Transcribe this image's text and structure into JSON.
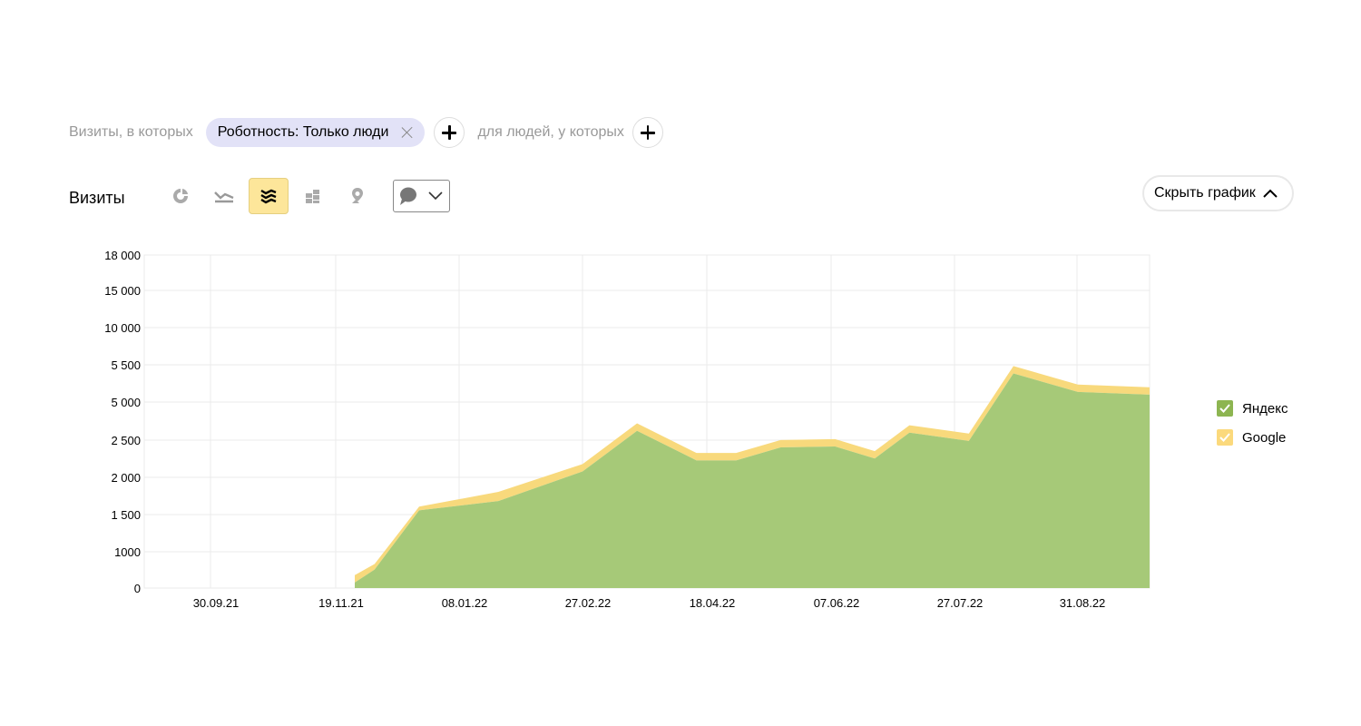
{
  "filter": {
    "visits_text": "Визиты, в которых",
    "chip_label": "Роботность: Только люди",
    "people_text": "для людей, у которых"
  },
  "toolbar": {
    "title": "Визиты",
    "hide_chart_label": "Скрыть график",
    "active_view": "stacked-area"
  },
  "colors": {
    "yandex": "#a6c978",
    "google": "#f8d97c",
    "active_view_bg": "#fde69a",
    "chip_bg": "#e2e2f7",
    "legend_yandex": "#8db551",
    "legend_google": "#fbd97c"
  },
  "chart_data": {
    "type": "area",
    "stacked": true,
    "title": "",
    "xlabel": "",
    "ylabel": "",
    "ylim": [
      0,
      18000
    ],
    "y_ticks": [
      "0",
      "1000",
      "1 500",
      "2 000",
      "2 500",
      "5 000",
      "5 500",
      "10 000",
      "15 000",
      "18 000"
    ],
    "x_tick_labels": [
      "30.09.21",
      "19.11.21",
      "08.01.22",
      "27.02.22",
      "18.04.22",
      "07.06.22",
      "27.07.22",
      "31.08.22"
    ],
    "grid": true,
    "legend": "right",
    "series": [
      {
        "name": "Яндекс",
        "points": [
          [
            0,
            300
          ],
          [
            0.2,
            1000
          ],
          [
            0.65,
            4200
          ],
          [
            1.45,
            4700
          ],
          [
            2.3,
            6300
          ],
          [
            2.85,
            8500
          ],
          [
            3.45,
            6900
          ],
          [
            3.7,
            6900
          ],
          [
            3.85,
            6900
          ],
          [
            4.3,
            7600
          ],
          [
            4.85,
            7650
          ],
          [
            5.25,
            7000
          ],
          [
            5.6,
            8400
          ],
          [
            6.2,
            7950
          ],
          [
            6.65,
            11600
          ],
          [
            7.3,
            10600
          ],
          [
            8.2,
            10450
          ],
          [
            8.5,
            11100
          ],
          [
            8.8,
            10300
          ],
          [
            9.2,
            10250
          ],
          [
            9.35,
            10800
          ],
          [
            9.6,
            11400
          ],
          [
            9.9,
            11300
          ],
          [
            10.15,
            11700
          ]
        ]
      },
      {
        "name": "Google",
        "points": [
          [
            0,
            400
          ],
          [
            0.2,
            300
          ],
          [
            0.65,
            200
          ],
          [
            1.45,
            500
          ],
          [
            2.3,
            400
          ],
          [
            2.85,
            400
          ],
          [
            3.45,
            400
          ],
          [
            3.7,
            400
          ],
          [
            3.85,
            400
          ],
          [
            4.3,
            400
          ],
          [
            4.85,
            400
          ],
          [
            5.25,
            400
          ],
          [
            5.6,
            400
          ],
          [
            6.2,
            400
          ],
          [
            6.65,
            400
          ],
          [
            7.3,
            400
          ],
          [
            8.2,
            400
          ],
          [
            8.5,
            400
          ],
          [
            8.8,
            400
          ],
          [
            9.2,
            400
          ],
          [
            9.35,
            400
          ],
          [
            9.6,
            400
          ],
          [
            9.9,
            400
          ],
          [
            10.15,
            400
          ]
        ]
      }
    ]
  }
}
